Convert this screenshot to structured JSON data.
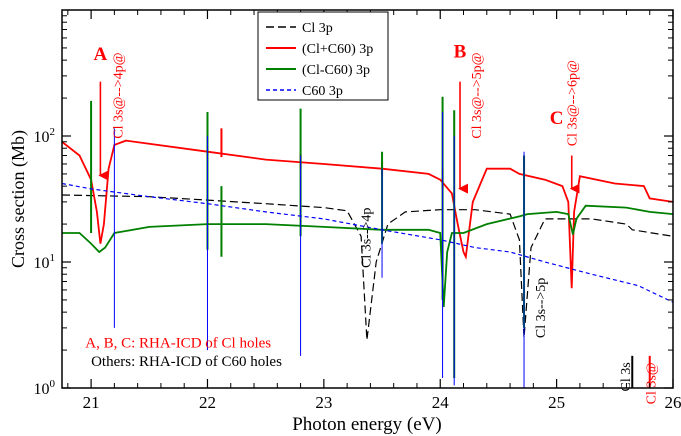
{
  "chart_data": {
    "type": "line",
    "xlabel": "Photon energy (eV)",
    "ylabel": "Cross section (Mb)",
    "xlim": [
      20.75,
      26.0
    ],
    "ylim": [
      1,
      1000
    ],
    "yscale": "log",
    "x_ticks": [
      {
        "value": 21,
        "label": "21"
      },
      {
        "value": 22,
        "label": "22"
      },
      {
        "value": 23,
        "label": "23"
      },
      {
        "value": 24,
        "label": "24"
      },
      {
        "value": 25,
        "label": "25"
      },
      {
        "value": 26,
        "label": "26"
      }
    ],
    "y_ticks": [
      {
        "value": 1,
        "base": "10",
        "exp": "0"
      },
      {
        "value": 10,
        "base": "10",
        "exp": "1"
      },
      {
        "value": 100,
        "base": "10",
        "exp": "2"
      }
    ],
    "legend": {
      "placement": "top-center",
      "entries": [
        {
          "label": "Cl 3p",
          "color": "#000000",
          "dash": "dashed"
        },
        {
          "label": "(Cl+C60) 3p",
          "color": "#ff0000",
          "dash": "solid"
        },
        {
          "label": "(Cl-C60) 3p",
          "color": "#008000",
          "dash": "solid"
        },
        {
          "label": "C60 3p",
          "color": "#0000ff",
          "dash": "short-dashed"
        }
      ]
    },
    "series": [
      {
        "name": "Cl 3p",
        "color": "#000000",
        "dash": "dashed",
        "background": [
          [
            20.75,
            34
          ],
          [
            21.5,
            33
          ],
          [
            22,
            31
          ],
          [
            22.5,
            29
          ],
          [
            23,
            27
          ],
          [
            23.2,
            25.5
          ],
          [
            23.32,
            16
          ],
          [
            23.37,
            2.4
          ],
          [
            23.45,
            10
          ],
          [
            23.55,
            20
          ],
          [
            23.7,
            25
          ],
          [
            24,
            26
          ],
          [
            24.3,
            26
          ],
          [
            24.6,
            24
          ],
          [
            24.68,
            15
          ],
          [
            24.72,
            2.5
          ],
          [
            24.78,
            13
          ],
          [
            24.9,
            22
          ],
          [
            25.3,
            22
          ],
          [
            25.6,
            20
          ],
          [
            25.65,
            18
          ],
          [
            26,
            16
          ]
        ],
        "resonances": []
      },
      {
        "name": "(Cl+C60) 3p",
        "color": "#ff0000",
        "dash": "solid",
        "background": [
          [
            20.75,
            90
          ],
          [
            20.9,
            70
          ],
          [
            21.0,
            45
          ],
          [
            21.05,
            25
          ],
          [
            21.08,
            14
          ],
          [
            21.11,
            20
          ],
          [
            21.15,
            55
          ],
          [
            21.2,
            85
          ],
          [
            21.3,
            92
          ],
          [
            22,
            75
          ],
          [
            22.5,
            65
          ],
          [
            23,
            60
          ],
          [
            23.5,
            55
          ],
          [
            23.9,
            50
          ],
          [
            24.0,
            45
          ],
          [
            24.1,
            35
          ],
          [
            24.15,
            20
          ],
          [
            24.2,
            12
          ],
          [
            24.22,
            11
          ],
          [
            24.28,
            30
          ],
          [
            24.4,
            55
          ],
          [
            24.6,
            55
          ],
          [
            24.68,
            50
          ],
          [
            24.9,
            45
          ],
          [
            25.05,
            40
          ],
          [
            25.1,
            30
          ],
          [
            25.13,
            6.2
          ],
          [
            25.15,
            25
          ],
          [
            25.2,
            48
          ],
          [
            25.5,
            42
          ],
          [
            25.75,
            40
          ],
          [
            25.8,
            32
          ],
          [
            26,
            30
          ]
        ],
        "resonances": [
          {
            "x": 22.0,
            "lo": 65,
            "hi": 83
          },
          {
            "x": 22.12,
            "lo": 68,
            "hi": 115
          },
          {
            "x": 22.8,
            "lo": 55,
            "hi": 72
          },
          {
            "x": 23.5,
            "lo": 48,
            "hi": 62
          },
          {
            "x": 24.02,
            "lo": 38,
            "hi": 55
          },
          {
            "x": 24.72,
            "lo": 45,
            "hi": 70
          }
        ]
      },
      {
        "name": "(Cl-C60) 3p",
        "color": "#008000",
        "dash": "solid",
        "background": [
          [
            20.75,
            17
          ],
          [
            20.9,
            17
          ],
          [
            21.0,
            14
          ],
          [
            21.07,
            12
          ],
          [
            21.12,
            13
          ],
          [
            21.2,
            17
          ],
          [
            21.5,
            19
          ],
          [
            22,
            20
          ],
          [
            22.5,
            20
          ],
          [
            23,
            19
          ],
          [
            23.5,
            18
          ],
          [
            23.9,
            18
          ],
          [
            24.0,
            17
          ],
          [
            24.03,
            4.4
          ],
          [
            24.06,
            12
          ],
          [
            24.1,
            17
          ],
          [
            24.2,
            17
          ],
          [
            24.4,
            20
          ],
          [
            24.68,
            23
          ],
          [
            24.75,
            24
          ],
          [
            25.0,
            25
          ],
          [
            25.1,
            24
          ],
          [
            25.14,
            16.5
          ],
          [
            25.17,
            22
          ],
          [
            25.25,
            28
          ],
          [
            25.6,
            27
          ],
          [
            25.8,
            25
          ],
          [
            26,
            24
          ]
        ],
        "resonances": [
          {
            "x": 21.0,
            "lo": 17,
            "hi": 190
          },
          {
            "x": 22.0,
            "lo": 12.5,
            "hi": 155
          },
          {
            "x": 22.12,
            "lo": 11,
            "hi": 40
          },
          {
            "x": 22.8,
            "lo": 16,
            "hi": 165
          },
          {
            "x": 23.5,
            "lo": 14,
            "hi": 75
          },
          {
            "x": 24.02,
            "lo": 5,
            "hi": 205
          },
          {
            "x": 24.12,
            "lo": 1.2,
            "hi": 160
          },
          {
            "x": 24.72,
            "lo": 3,
            "hi": 70
          }
        ]
      },
      {
        "name": "C60 3p",
        "color": "#0000ff",
        "dash": "short-dashed",
        "background": [
          [
            20.75,
            42
          ],
          [
            21,
            38
          ],
          [
            21.5,
            33
          ],
          [
            22,
            29
          ],
          [
            22.5,
            25
          ],
          [
            23,
            22
          ],
          [
            23.5,
            18
          ],
          [
            24,
            15
          ],
          [
            24.3,
            13
          ],
          [
            24.6,
            12
          ],
          [
            24.9,
            10
          ],
          [
            25.3,
            8
          ],
          [
            25.7,
            6.5
          ],
          [
            26,
            4.8
          ]
        ],
        "resonances": [
          {
            "x": 21.2,
            "lo": 3,
            "hi": 115
          },
          {
            "x": 22.0,
            "lo": 2,
            "hi": 100
          },
          {
            "x": 22.8,
            "lo": 1.8,
            "hi": 70
          },
          {
            "x": 23.5,
            "lo": 7.5,
            "hi": 55
          },
          {
            "x": 24.02,
            "lo": 1.2,
            "hi": 155
          },
          {
            "x": 24.12,
            "lo": 1.05,
            "hi": 100
          },
          {
            "x": 24.72,
            "lo": 1.0,
            "hi": 75
          }
        ]
      }
    ],
    "annotations": [
      {
        "text": "A",
        "color": "#ff0000",
        "style": "bold-large",
        "x": 21.08,
        "y": 400
      },
      {
        "text": "Cl 3s@-->4p@",
        "color": "#ff0000",
        "rotated": true,
        "x": 21.27,
        "y": 460
      },
      {
        "text": "B",
        "color": "#ff0000",
        "style": "bold-large",
        "x": 24.17,
        "y": 420
      },
      {
        "text": "Cl 3s@-->5p@",
        "color": "#ff0000",
        "rotated": true,
        "x": 24.35,
        "y": 460
      },
      {
        "text": "C",
        "color": "#ff0000",
        "style": "bold-large",
        "x": 25.0,
        "y": 125
      },
      {
        "text": "Cl 3s@-->6p@",
        "color": "#ff0000",
        "rotated": true,
        "x": 25.17,
        "y": 400
      },
      {
        "text": "Cl 3s-->4p",
        "color": "#000000",
        "rotated": true,
        "x": 23.4,
        "y": 27
      },
      {
        "text": "Cl 3s-->5p",
        "color": "#000000",
        "rotated": true,
        "x": 24.9,
        "y": 7.5
      },
      {
        "text": "A, B, C: RHA-ICD of Cl holes",
        "color": "#ff0000",
        "x": 20.95,
        "y": 2.1
      },
      {
        "text": "Others: RHA-ICD of C60 holes",
        "color": "#000000",
        "x": 21.0,
        "y": 1.5
      },
      {
        "text": "Cl 3s",
        "color": "#000000",
        "rotated": true,
        "x": 25.63,
        "y": 1.6
      },
      {
        "text": "Cl 3s@",
        "color": "#ff0000",
        "rotated": true,
        "x": 25.85,
        "y": 1.6
      }
    ],
    "threshold_markers": [
      {
        "x": 25.65,
        "lo": 1,
        "hi": 1.8,
        "color": "#000000"
      },
      {
        "x": 25.8,
        "lo": 1,
        "hi": 1.8,
        "color": "#ff0000"
      }
    ],
    "arrows": [
      {
        "x": 21.08,
        "from": 270,
        "to": 42,
        "color": "#ff0000"
      },
      {
        "x": 24.17,
        "from": 270,
        "to": 33,
        "color": "#ff0000"
      },
      {
        "x": 25.13,
        "from": 70,
        "to": 33,
        "color": "#ff0000"
      }
    ]
  }
}
